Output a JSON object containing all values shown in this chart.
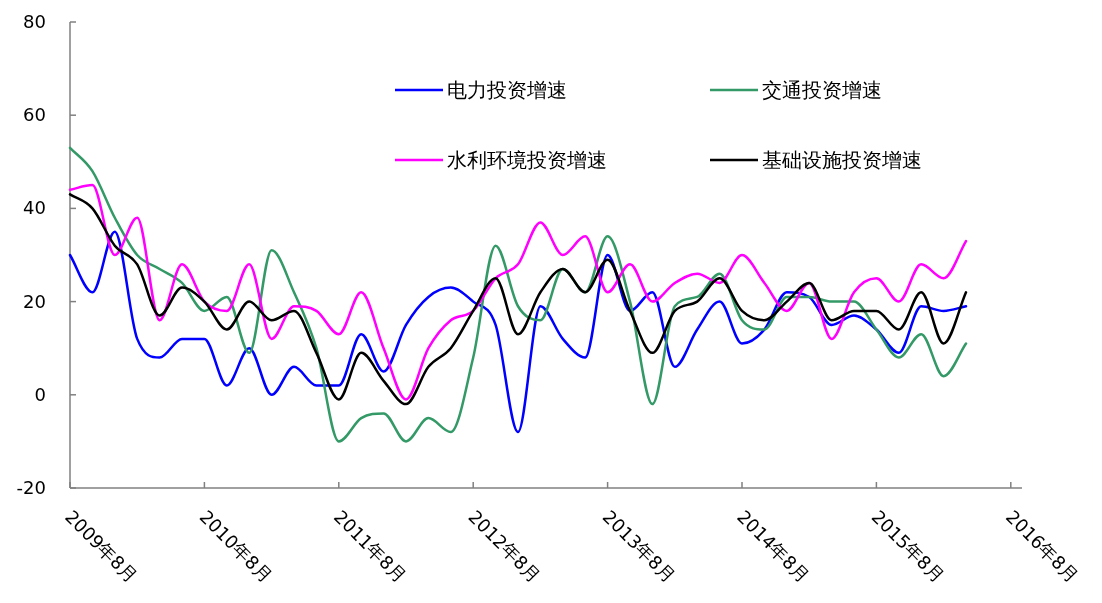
{
  "chart_data": {
    "type": "line",
    "x": [
      "2009-08",
      "2009-10",
      "2009-12",
      "2010-02",
      "2010-04",
      "2010-06",
      "2010-08",
      "2010-10",
      "2010-12",
      "2011-02",
      "2011-04",
      "2011-06",
      "2011-08",
      "2011-10",
      "2011-12",
      "2012-02",
      "2012-04",
      "2012-06",
      "2012-08",
      "2012-10",
      "2012-12",
      "2013-02",
      "2013-04",
      "2013-06",
      "2013-08",
      "2013-10",
      "2013-12",
      "2014-02",
      "2014-04",
      "2014-06",
      "2014-08",
      "2014-10",
      "2014-12",
      "2015-02",
      "2015-04",
      "2015-06",
      "2015-08",
      "2015-10",
      "2015-12",
      "2016-02",
      "2016-04"
    ],
    "series": [
      {
        "name": "电力投资增速",
        "color": "#0000ff",
        "values": [
          30,
          22,
          35,
          12,
          8,
          12,
          12,
          2,
          10,
          0,
          6,
          2,
          2,
          13,
          5,
          15,
          21,
          23,
          20,
          15,
          -8,
          19,
          12,
          8,
          30,
          18,
          22,
          6,
          14,
          20,
          11,
          14,
          22,
          21,
          15,
          17,
          14,
          9,
          19,
          18,
          19
        ]
      },
      {
        "name": "交通投资增速",
        "color": "#339966",
        "values": [
          53,
          48,
          38,
          30,
          27,
          24,
          18,
          21,
          9,
          31,
          22,
          10,
          -10,
          -5,
          -4,
          -10,
          -5,
          -8,
          8,
          32,
          19,
          16,
          27,
          22,
          34,
          20,
          -2,
          19,
          21,
          26,
          16,
          14,
          21,
          21,
          20,
          20,
          14,
          8,
          13,
          4,
          11
        ]
      },
      {
        "name": "水利环境投资增速",
        "color": "#ff00ff",
        "values": [
          44,
          45,
          30,
          38,
          16,
          28,
          20,
          18,
          28,
          12,
          19,
          18,
          13,
          22,
          10,
          -1,
          10,
          16,
          18,
          25,
          28,
          37,
          30,
          34,
          22,
          28,
          20,
          24,
          26,
          24,
          30,
          24,
          18,
          24,
          12,
          22,
          25,
          20,
          28,
          25,
          33
        ]
      },
      {
        "name": "基础设施投资增速",
        "color": "#000000",
        "values": [
          43,
          40,
          32,
          28,
          17,
          23,
          20,
          14,
          20,
          16,
          18,
          9,
          -1,
          9,
          3,
          -2,
          6,
          10,
          18,
          25,
          13,
          22,
          27,
          22,
          29,
          18,
          9,
          18,
          20,
          25,
          18,
          16,
          20,
          24,
          16,
          18,
          18,
          14,
          22,
          11,
          22
        ]
      }
    ],
    "xlim": [
      "2009-08",
      "2016-09"
    ],
    "xticks": [
      {
        "value": "2009-08",
        "label": "2009年8月"
      },
      {
        "value": "2010-08",
        "label": "2010年8月"
      },
      {
        "value": "2011-08",
        "label": "2011年8月"
      },
      {
        "value": "2012-08",
        "label": "2012年8月"
      },
      {
        "value": "2013-08",
        "label": "2013年8月"
      },
      {
        "value": "2014-08",
        "label": "2014年8月"
      },
      {
        "value": "2015-08",
        "label": "2015年8月"
      },
      {
        "value": "2016-08",
        "label": "2016年8月"
      }
    ],
    "ylim": [
      -20,
      80
    ],
    "yticks": [
      -20,
      0,
      20,
      40,
      60,
      80
    ],
    "legend": "top"
  }
}
